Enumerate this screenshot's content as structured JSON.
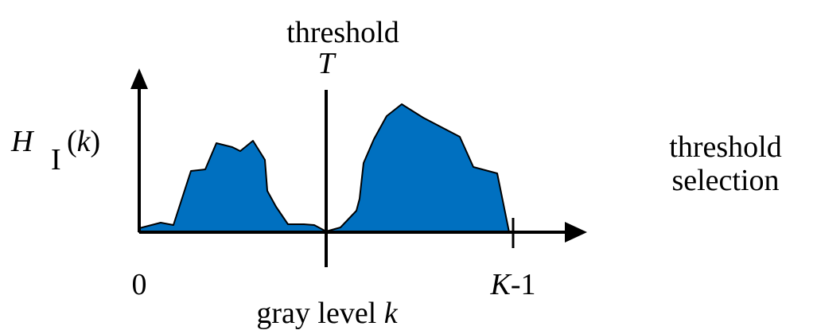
{
  "diagram": {
    "y_axis_label": {
      "main": "H",
      "subscript": "I",
      "argument_open": "(",
      "argument": "k",
      "argument_close": ")"
    },
    "threshold_label": "threshold",
    "threshold_symbol": "T",
    "x_origin_label": "0",
    "x_end_label": {
      "variable": "K",
      "suffix": "-1"
    },
    "x_axis_label": {
      "text": "gray level ",
      "variable": "k"
    },
    "caption": {
      "line1": "threshold",
      "line2": "selection"
    }
  },
  "colors": {
    "histogram_fill": "#0070C0",
    "lines": "#000000",
    "background": "#ffffff"
  }
}
